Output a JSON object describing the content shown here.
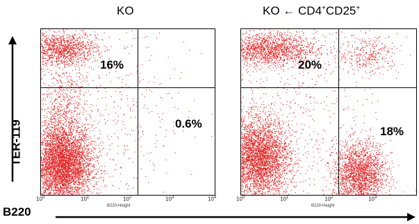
{
  "titles": {
    "left": "KO",
    "right_prefix": "KO",
    "right_cd4": "CD4",
    "right_cd4_sup": "+",
    "right_cd25": "CD25",
    "right_cd25_sup": "+"
  },
  "axes": {
    "y_label": "TER-119",
    "x_label": "B220",
    "x_small_title": "B220-Height",
    "ticks": [
      {
        "base": "10",
        "exp": "0"
      },
      {
        "base": "10",
        "exp": "1"
      },
      {
        "base": "10",
        "exp": "2"
      },
      {
        "base": "10",
        "exp": "3"
      },
      {
        "base": "10",
        "exp": "4"
      }
    ]
  },
  "colors": {
    "dots": "#e02020",
    "lines": "#000000"
  },
  "chart_data": [
    {
      "type": "scatter",
      "title": "KO",
      "xlabel": "B220-Height",
      "ylabel": "TER-119",
      "x_scale": "log",
      "xlim": [
        1,
        10000
      ],
      "quadrant_percentages": {
        "upper_left": "16%",
        "lower_right": "0.6%"
      },
      "populations": [
        {
          "center": [
            3,
            0.18
          ],
          "spread": [
            0.35,
            0.12
          ],
          "count": 4500
        },
        {
          "center": [
            3,
            0.88
          ],
          "spread": [
            0.4,
            0.05
          ],
          "count": 1200
        },
        {
          "center": [
            3,
            0.45
          ],
          "spread": [
            0.3,
            0.2
          ],
          "count": 900
        },
        {
          "center": [
            20,
            0.5
          ],
          "spread": [
            1.0,
            0.35
          ],
          "count": 600
        }
      ]
    },
    {
      "type": "scatter",
      "title": "KO ← CD4+CD25+",
      "xlabel": "B220-Height",
      "ylabel": "TER-119",
      "x_scale": "log",
      "xlim": [
        1,
        10000
      ],
      "quadrant_percentages": {
        "upper_left": "20%",
        "lower_right": "18%"
      },
      "populations": [
        {
          "center": [
            2.5,
            0.22
          ],
          "spread": [
            0.35,
            0.12
          ],
          "count": 3800
        },
        {
          "center": [
            4,
            0.88
          ],
          "spread": [
            0.55,
            0.05
          ],
          "count": 1600
        },
        {
          "center": [
            500,
            0.12
          ],
          "spread": [
            0.3,
            0.1
          ],
          "count": 2200
        },
        {
          "center": [
            800,
            0.85
          ],
          "spread": [
            0.35,
            0.06
          ],
          "count": 350
        },
        {
          "center": [
            10,
            0.5
          ],
          "spread": [
            1.0,
            0.35
          ],
          "count": 700
        }
      ]
    }
  ]
}
